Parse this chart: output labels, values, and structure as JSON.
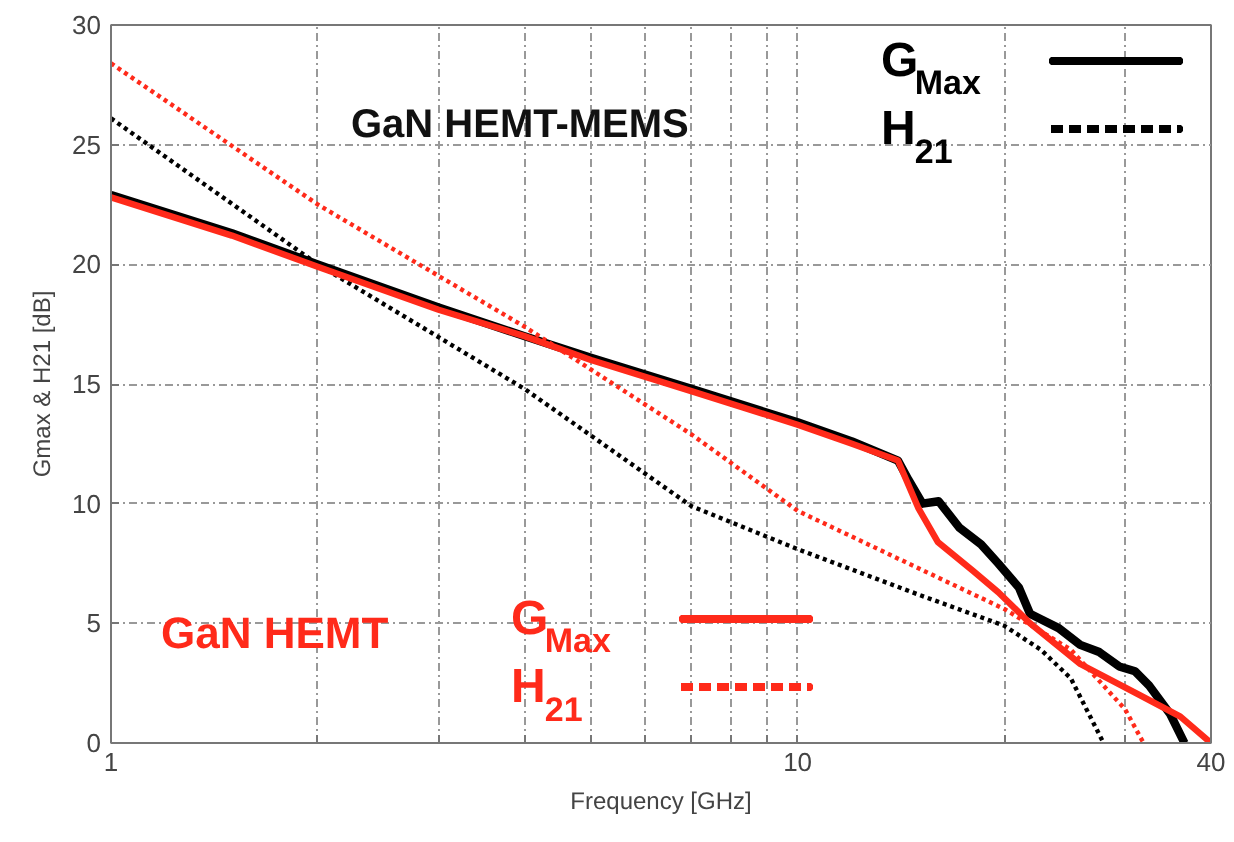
{
  "chart_data": {
    "type": "line",
    "xlabel": "Frequency [GHz]",
    "ylabel": "Gmax & H21 [dB]",
    "annotations": [
      "GaN HEMT-MEMS",
      "GaN HEMT"
    ],
    "log": "x",
    "xlim": [
      1,
      40
    ],
    "ylim": [
      0,
      30
    ],
    "xticks": [
      1,
      {
        "value": 2,
        "label": null
      },
      {
        "value": 3,
        "label": null
      },
      {
        "value": 4,
        "label": null
      },
      {
        "value": 5,
        "label": null
      },
      {
        "value": 6,
        "label": null
      },
      {
        "value": 7,
        "label": null
      },
      {
        "value": 8,
        "label": null
      },
      {
        "value": 9,
        "label": null
      },
      10,
      {
        "value": 20,
        "label": null
      },
      {
        "value": 30,
        "label": null
      },
      40
    ],
    "yticks": [
      0,
      5,
      10,
      15,
      20,
      25,
      30
    ],
    "grid": true,
    "legend": "top right",
    "series": [
      {
        "name": "G$_{Max}$",
        "color": "#000000",
        "line_style": "solid",
        "x": [
          1,
          1.5,
          2,
          3,
          4,
          5,
          7,
          10,
          12,
          14,
          14.5,
          15.2,
          16.05,
          17.2,
          18.5,
          19.6,
          21,
          21.8,
          22.5,
          24,
          25.8,
          27.5,
          29.4,
          31,
          32.5,
          34.9,
          36.6
        ],
        "values": [
          22.9,
          21.3,
          20.0,
          18.2,
          17.0,
          16.1,
          14.8,
          13.4,
          12.6,
          11.8,
          11.0,
          10.0,
          10.1,
          9.0,
          8.3,
          7.5,
          6.5,
          5.4,
          5.2,
          4.8,
          4.1,
          3.8,
          3.2,
          3.0,
          2.4,
          1.2,
          0
        ]
      },
      {
        "name": "H$_{21}$",
        "color": "#000000",
        "line_style": "dotted",
        "x": [
          1,
          2,
          4,
          7,
          10,
          15,
          20,
          22.6,
          25,
          27.9
        ],
        "values": [
          26.1,
          20.0,
          14.8,
          9.9,
          8.1,
          6.2,
          4.9,
          3.9,
          2.7,
          0
        ]
      },
      {
        "name": "G$_{Max}$",
        "color": "#ff2a1a",
        "line_style": "solid",
        "x": [
          1,
          1.5,
          2,
          3,
          4,
          5,
          7,
          10,
          12,
          14,
          15,
          16,
          18,
          19.6,
          21.8,
          25.8,
          31.5,
          36.1,
          40
        ],
        "values": [
          22.8,
          21.2,
          19.9,
          18.1,
          17.0,
          16.0,
          14.7,
          13.3,
          12.5,
          11.8,
          9.8,
          8.4,
          7.2,
          6.3,
          5.0,
          3.3,
          2.0,
          1.1,
          0
        ]
      },
      {
        "name": "H$_{21}$",
        "color": "#ff2a1a",
        "line_style": "dotted",
        "x": [
          1,
          2,
          4,
          7,
          10,
          15,
          20,
          25,
          30,
          31.9
        ],
        "values": [
          28.4,
          22.5,
          17.4,
          12.9,
          9.7,
          7.3,
          5.6,
          3.9,
          1.4,
          0
        ]
      }
    ]
  }
}
